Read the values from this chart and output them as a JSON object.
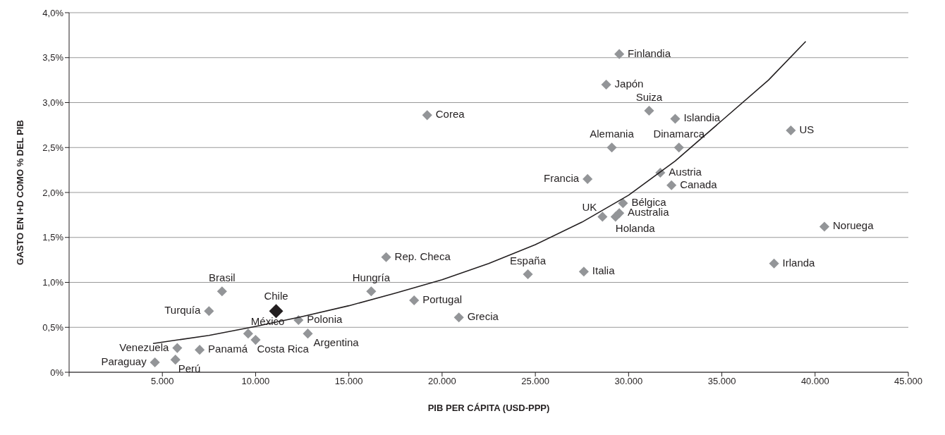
{
  "chart_data": {
    "type": "scatter",
    "xlabel": "PIB PER CÁPITA (USD-PPP)",
    "ylabel": "GASTO EN I+D COMO % DEL PIB",
    "xlim": [
      0,
      45000
    ],
    "xticks": [
      {
        "value": 0,
        "label": null
      },
      {
        "value": 5000,
        "label": "5.000"
      },
      {
        "value": 10000,
        "label": "10.000"
      },
      {
        "value": 15000,
        "label": "15.000"
      },
      {
        "value": 20000,
        "label": "20.000"
      },
      {
        "value": 25000,
        "label": "25.000"
      },
      {
        "value": 30000,
        "label": "30.000"
      },
      {
        "value": 35000,
        "label": "35.000"
      },
      {
        "value": 40000,
        "label": "40.000"
      },
      {
        "value": 45000,
        "label": "45.000"
      }
    ],
    "ylim": [
      0,
      4
    ],
    "yticks": [
      {
        "value": 0,
        "label": "0%"
      },
      {
        "value": 0.5,
        "label": "0,5%"
      },
      {
        "value": 1,
        "label": "1,0%"
      },
      {
        "value": 1.5,
        "label": "1,5%"
      },
      {
        "value": 2,
        "label": "2,0%"
      },
      {
        "value": 2.5,
        "label": "2,5%"
      },
      {
        "value": 3,
        "label": "3,0%"
      },
      {
        "value": 3.5,
        "label": "3,5%"
      },
      {
        "value": 4,
        "label": "4,0%"
      }
    ],
    "grid": "y",
    "marker": "diamond",
    "series": [
      {
        "sizes": [
          0.5,
          0.5,
          0.5,
          0.5,
          0.5,
          0.5,
          0.5,
          0.5,
          0.5,
          0.5,
          0.5,
          0.5,
          0.5,
          0.5,
          0.5,
          0.5,
          0.5,
          0.5,
          0.5,
          0.5,
          0.5,
          0.5,
          0.5,
          1,
          0.5,
          0.5,
          0.5,
          0.5,
          0.5,
          0.5,
          0.5,
          0.5,
          0.5,
          0.5
        ],
        "x": [
          29500,
          28800,
          31100,
          32500,
          19200,
          38700,
          29100,
          32700,
          31700,
          27800,
          32300,
          29700,
          29500,
          29300,
          28600,
          40500,
          17000,
          37800,
          27600,
          24600,
          8200,
          16200,
          18500,
          11100,
          7500,
          20900,
          12300,
          9600,
          12800,
          10000,
          5800,
          7000,
          5700,
          4600
        ],
        "values": [
          3.54,
          3.2,
          2.91,
          2.82,
          2.86,
          2.69,
          2.5,
          2.5,
          2.22,
          2.15,
          2.08,
          1.88,
          1.77,
          1.73,
          1.73,
          1.62,
          1.28,
          1.21,
          1.12,
          1.09,
          0.9,
          0.9,
          0.8,
          0.68,
          0.68,
          0.61,
          0.58,
          0.43,
          0.43,
          0.36,
          0.27,
          0.25,
          0.14,
          0.11
        ],
        "colors": [
          "#939598",
          "#939598",
          "#939598",
          "#939598",
          "#939598",
          "#939598",
          "#939598",
          "#939598",
          "#939598",
          "#939598",
          "#939598",
          "#939598",
          "#939598",
          "#939598",
          "#939598",
          "#939598",
          "#939598",
          "#939598",
          "#939598",
          "#939598",
          "#939598",
          "#939598",
          "#939598",
          "#231f20",
          "#939598",
          "#939598",
          "#939598",
          "#939598",
          "#939598",
          "#939598",
          "#939598",
          "#939598",
          "#939598",
          "#939598"
        ]
      },
      {
        "type": "line",
        "marker": "none",
        "color": "#231f20",
        "x": [
          4500,
          7500,
          10000,
          12500,
          15000,
          17500,
          20000,
          22500,
          25000,
          27500,
          30000,
          32500,
          35000,
          37500,
          39500
        ],
        "values": [
          0.32,
          0.41,
          0.51,
          0.62,
          0.74,
          0.88,
          1.03,
          1.21,
          1.42,
          1.67,
          1.97,
          2.35,
          2.8,
          3.25,
          3.68
        ]
      }
    ],
    "annotations": [
      {
        "text": "Finlandia",
        "x": 29500,
        "y": 3.54
      },
      {
        "text": "Japón",
        "x": 28800,
        "y": 3.2
      },
      {
        "text": "Suiza",
        "x": 31100,
        "y": 2.91
      },
      {
        "text": "Islandia",
        "x": 32500,
        "y": 2.82
      },
      {
        "text": "Corea",
        "x": 19200,
        "y": 2.86
      },
      {
        "text": "US",
        "x": 38700,
        "y": 2.69
      },
      {
        "text": "Alemania",
        "x": 29100,
        "y": 2.5
      },
      {
        "text": "Dinamarca",
        "x": 32700,
        "y": 2.5
      },
      {
        "text": "Austria",
        "x": 31700,
        "y": 2.22
      },
      {
        "text": "Francia",
        "x": 27800,
        "y": 2.15
      },
      {
        "text": "Canada",
        "x": 32300,
        "y": 2.08
      },
      {
        "text": "Bélgica",
        "x": 29700,
        "y": 1.88
      },
      {
        "text": "Australia",
        "x": 29500,
        "y": 1.77
      },
      {
        "text": "Holanda",
        "x": 29300,
        "y": 1.73
      },
      {
        "text": "UK",
        "x": 28600,
        "y": 1.73
      },
      {
        "text": "Noruega",
        "x": 40500,
        "y": 1.62
      },
      {
        "text": "Rep. Checa",
        "x": 17000,
        "y": 1.28
      },
      {
        "text": "Irlanda",
        "x": 37800,
        "y": 1.21
      },
      {
        "text": "Italia",
        "x": 27600,
        "y": 1.12
      },
      {
        "text": "España",
        "x": 24600,
        "y": 1.09
      },
      {
        "text": "Brasil",
        "x": 8200,
        "y": 0.9
      },
      {
        "text": "Hungría",
        "x": 16200,
        "y": 0.9
      },
      {
        "text": "Portugal",
        "x": 18500,
        "y": 0.8
      },
      {
        "text": "Chile",
        "x": 11100,
        "y": 0.68
      },
      {
        "text": "Turquía",
        "x": 7500,
        "y": 0.68
      },
      {
        "text": "Grecia",
        "x": 20900,
        "y": 0.61
      },
      {
        "text": "Polonia",
        "x": 12300,
        "y": 0.58
      },
      {
        "text": "México",
        "x": 9600,
        "y": 0.43
      },
      {
        "text": "Argentina",
        "x": 12800,
        "y": 0.43
      },
      {
        "text": "Costa Rica",
        "x": 10000,
        "y": 0.36
      },
      {
        "text": "Venezuela",
        "x": 5800,
        "y": 0.27
      },
      {
        "text": "Panamá",
        "x": 7000,
        "y": 0.25
      },
      {
        "text": "Perú",
        "x": 5700,
        "y": 0.14
      },
      {
        "text": "Paraguay",
        "x": 4600,
        "y": 0.11
      }
    ]
  }
}
